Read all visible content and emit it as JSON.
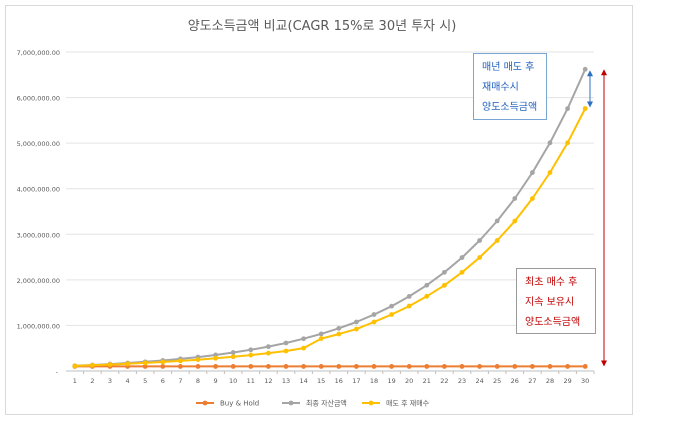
{
  "chart_data": {
    "type": "line",
    "title": "양도소득금액 비교(CAGR 15%로 30년 투자 시)",
    "xlabel": "",
    "ylabel": "",
    "categories": [
      1,
      2,
      3,
      4,
      5,
      6,
      7,
      8,
      9,
      10,
      11,
      12,
      13,
      14,
      15,
      16,
      17,
      18,
      19,
      20,
      21,
      22,
      23,
      24,
      25,
      26,
      27,
      28,
      29,
      30
    ],
    "ylim": [
      0,
      7000000
    ],
    "yticks": [
      "-",
      "1,000,000.00",
      "2,000,000.00",
      "3,000,000.00",
      "4,000,000.00",
      "5,000,000.00",
      "6,000,000.00",
      "7,000,000.00"
    ],
    "grid": true,
    "legend_position": "bottom",
    "series": [
      {
        "name": "Buy & Hold",
        "color": "#ed7d31",
        "values": [
          100000,
          100000,
          100000,
          100000,
          100000,
          100000,
          100000,
          100000,
          100000,
          100000,
          100000,
          100000,
          100000,
          100000,
          100000,
          100000,
          100000,
          100000,
          100000,
          100000,
          100000,
          100000,
          100000,
          100000,
          100000,
          100000,
          100000,
          100000,
          100000,
          100000
        ]
      },
      {
        "name": "최종 자산금액",
        "color": "#a5a5a5",
        "values": [
          115000,
          132000,
          152000,
          175000,
          201000,
          231000,
          266000,
          306000,
          352000,
          405000,
          465000,
          535000,
          615000,
          708000,
          814000,
          936000,
          1076000,
          1238000,
          1423000,
          1637000,
          1882000,
          2165000,
          2489000,
          2863000,
          3292000,
          3786000,
          4354000,
          5007000,
          5758000,
          6621000
        ]
      },
      {
        "name": "매도 후 재매수",
        "color": "#ffc000",
        "values": [
          112000,
          126000,
          141000,
          158000,
          177000,
          198000,
          222000,
          249000,
          279000,
          313000,
          350000,
          392000,
          439000,
          502000,
          712000,
          810000,
          920000,
          1075000,
          1240000,
          1425000,
          1640000,
          1880000,
          2165000,
          2490000,
          2863000,
          3290000,
          3785000,
          4355000,
          5008000,
          5760000
        ]
      }
    ],
    "annotations": [
      {
        "lines": [
          "매년 매도 후",
          "재매수시",
          "양도소득금액"
        ],
        "color": "#1f5fbf"
      },
      {
        "lines": [
          "최초 매수 후",
          "지속 보유시",
          "양도소득금액"
        ],
        "color": "#c00000"
      }
    ]
  }
}
